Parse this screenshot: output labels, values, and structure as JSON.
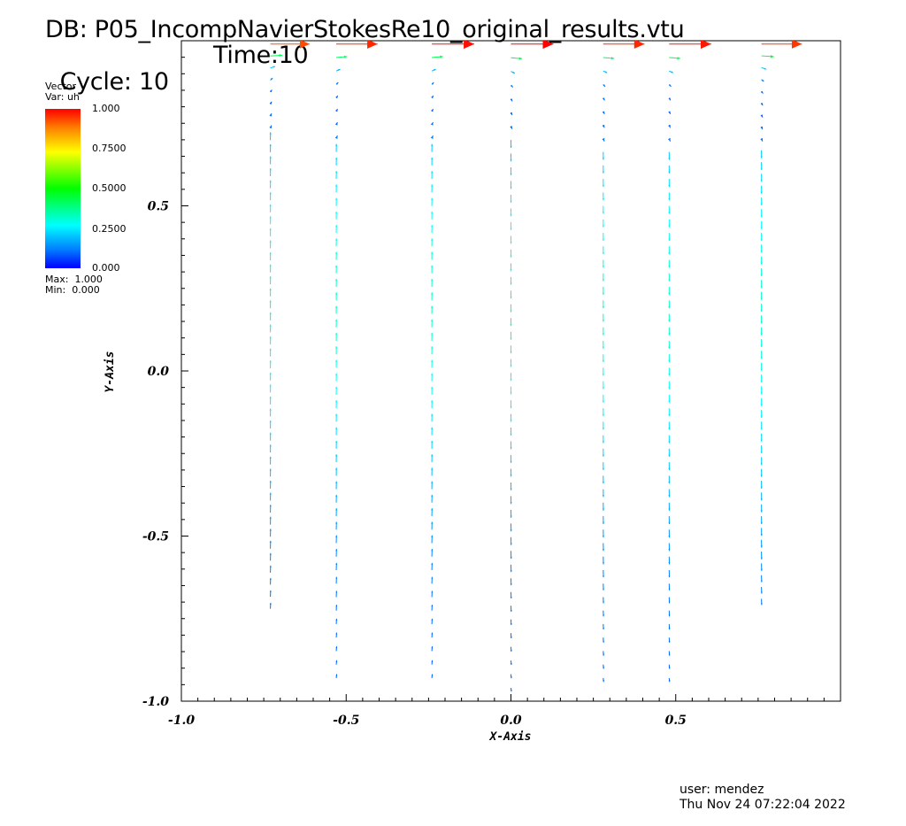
{
  "header": {
    "db": "DB: P05_IncompNavierStokesRe10_original_results.vtu",
    "cycle": "Cycle: 10",
    "time": "Time:10"
  },
  "legend": {
    "type": "Vector",
    "var": "Var: uh",
    "ticks": [
      "1.000",
      "0.7500",
      "0.5000",
      "0.2500",
      "0.000"
    ],
    "max": "Max:  1.000",
    "min": "Min:  0.000"
  },
  "footer": {
    "user": "user: mendez",
    "date": "Thu Nov 24 07:22:04 2022"
  },
  "chart_data": {
    "type": "vector-field",
    "xlabel": "X-Axis",
    "ylabel": "Y-Axis",
    "xlim": [
      -1.0,
      1.0
    ],
    "ylim": [
      -1.0,
      1.0
    ],
    "xticks": [
      "-1.0",
      "-0.5",
      "0.0",
      "0.5"
    ],
    "yticks": [
      "0.5",
      "0.0",
      "-0.5",
      "-1.0"
    ],
    "colormap": [
      "#0000ff",
      "#0080ff",
      "#00ffff",
      "#00ff00",
      "#ffff00",
      "#ff8000",
      "#ff0000"
    ],
    "color_range": [
      0.0,
      1.0
    ],
    "columns": [
      {
        "x": -0.73,
        "y_bottom": -0.72,
        "top_speed": 0.85
      },
      {
        "x": -0.53,
        "y_bottom": -0.93,
        "top_speed": 0.9
      },
      {
        "x": -0.24,
        "y_bottom": -0.93,
        "top_speed": 0.93
      },
      {
        "x": 0.0,
        "y_bottom": -0.96,
        "top_speed": 0.95
      },
      {
        "x": 0.28,
        "y_bottom": -0.93,
        "top_speed": 0.9
      },
      {
        "x": 0.48,
        "y_bottom": -0.93,
        "top_speed": 0.92
      },
      {
        "x": 0.76,
        "y_bottom": -0.69,
        "top_speed": 0.88
      }
    ]
  }
}
